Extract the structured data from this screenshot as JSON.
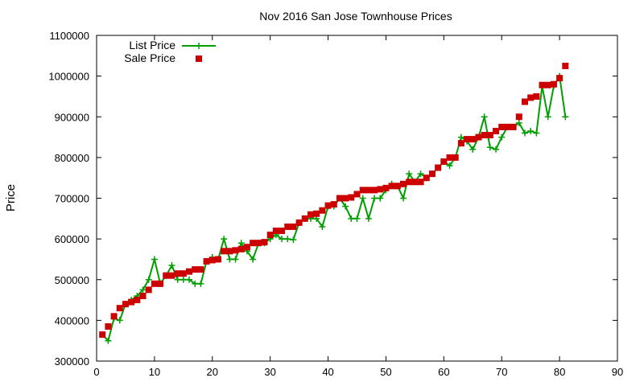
{
  "chart_data": {
    "type": "line",
    "title": "Nov 2016 San Jose Townhouse Prices",
    "xlabel": "",
    "ylabel": "Price",
    "xlim": [
      0,
      90
    ],
    "ylim": [
      300000,
      1100000
    ],
    "xticks": [
      "0",
      "10",
      "20",
      "30",
      "40",
      "50",
      "60",
      "70",
      "80",
      "90"
    ],
    "yticks": [
      "300000",
      "400000",
      "500000",
      "600000",
      "700000",
      "800000",
      "900000",
      "1000000",
      "1100000"
    ],
    "grid": false,
    "legend_position": "top-left",
    "series": [
      {
        "name": "List Price",
        "style": "line-with-plus-markers",
        "color": "#009e00",
        "x": [
          1,
          2,
          3,
          4,
          5,
          6,
          7,
          8,
          9,
          10,
          11,
          12,
          13,
          14,
          15,
          16,
          17,
          18,
          19,
          20,
          21,
          22,
          23,
          24,
          25,
          26,
          27,
          28,
          29,
          30,
          31,
          32,
          33,
          34,
          35,
          36,
          37,
          38,
          39,
          40,
          41,
          42,
          43,
          44,
          45,
          46,
          47,
          48,
          49,
          50,
          51,
          52,
          53,
          54,
          55,
          56,
          57,
          58,
          59,
          60,
          61,
          62,
          63,
          64,
          65,
          66,
          67,
          68,
          69,
          70,
          71,
          72,
          73,
          74,
          75,
          76,
          77,
          78,
          79,
          80,
          81
        ],
        "values": [
          365000,
          350000,
          405000,
          400000,
          440000,
          450000,
          460000,
          475000,
          500000,
          550000,
          490000,
          510000,
          535000,
          500000,
          500000,
          500000,
          490000,
          490000,
          545000,
          555000,
          550000,
          600000,
          550000,
          550000,
          590000,
          570000,
          550000,
          590000,
          590000,
          600000,
          610000,
          600000,
          600000,
          598000,
          640000,
          650000,
          650000,
          650000,
          630000,
          680000,
          680000,
          700000,
          680000,
          650000,
          650000,
          700000,
          650000,
          700000,
          700000,
          720000,
          735000,
          730000,
          700000,
          760000,
          740000,
          760000,
          750000,
          760000,
          775000,
          790000,
          780000,
          800000,
          850000,
          840000,
          820000,
          850000,
          900000,
          825000,
          820000,
          850000,
          875000,
          875000,
          885000,
          860000,
          865000,
          860000,
          975000,
          900000,
          975000,
          1000000,
          900000
        ]
      },
      {
        "name": "Sale Price",
        "style": "square-markers",
        "color": "#cc0000",
        "x": [
          1,
          2,
          3,
          4,
          5,
          6,
          7,
          8,
          9,
          10,
          11,
          12,
          13,
          14,
          15,
          16,
          17,
          18,
          19,
          20,
          21,
          22,
          23,
          24,
          25,
          26,
          27,
          28,
          29,
          30,
          31,
          32,
          33,
          34,
          35,
          36,
          37,
          38,
          39,
          40,
          41,
          42,
          43,
          44,
          45,
          46,
          47,
          48,
          49,
          50,
          51,
          52,
          53,
          54,
          55,
          56,
          57,
          58,
          59,
          60,
          61,
          62,
          63,
          64,
          65,
          66,
          67,
          68,
          69,
          70,
          71,
          72,
          73,
          74,
          75,
          76,
          77,
          78,
          79,
          80,
          81
        ],
        "values": [
          365000,
          385000,
          410000,
          430000,
          440000,
          445000,
          450000,
          460000,
          475000,
          490000,
          490000,
          510000,
          510000,
          515000,
          515000,
          520000,
          525000,
          525000,
          545000,
          548000,
          550000,
          570000,
          570000,
          572000,
          575000,
          580000,
          590000,
          590000,
          592000,
          610000,
          620000,
          620000,
          630000,
          630000,
          640000,
          650000,
          660000,
          662000,
          670000,
          682000,
          685000,
          700000,
          700000,
          702000,
          710000,
          720000,
          720000,
          720000,
          722000,
          725000,
          730000,
          730000,
          735000,
          740000,
          740000,
          740000,
          750000,
          760000,
          775000,
          790000,
          800000,
          800000,
          835000,
          845000,
          845000,
          850000,
          855000,
          855000,
          865000,
          875000,
          875000,
          875000,
          900000,
          937000,
          947000,
          950000,
          978000,
          978000,
          980000,
          995000,
          1025000
        ]
      }
    ]
  }
}
